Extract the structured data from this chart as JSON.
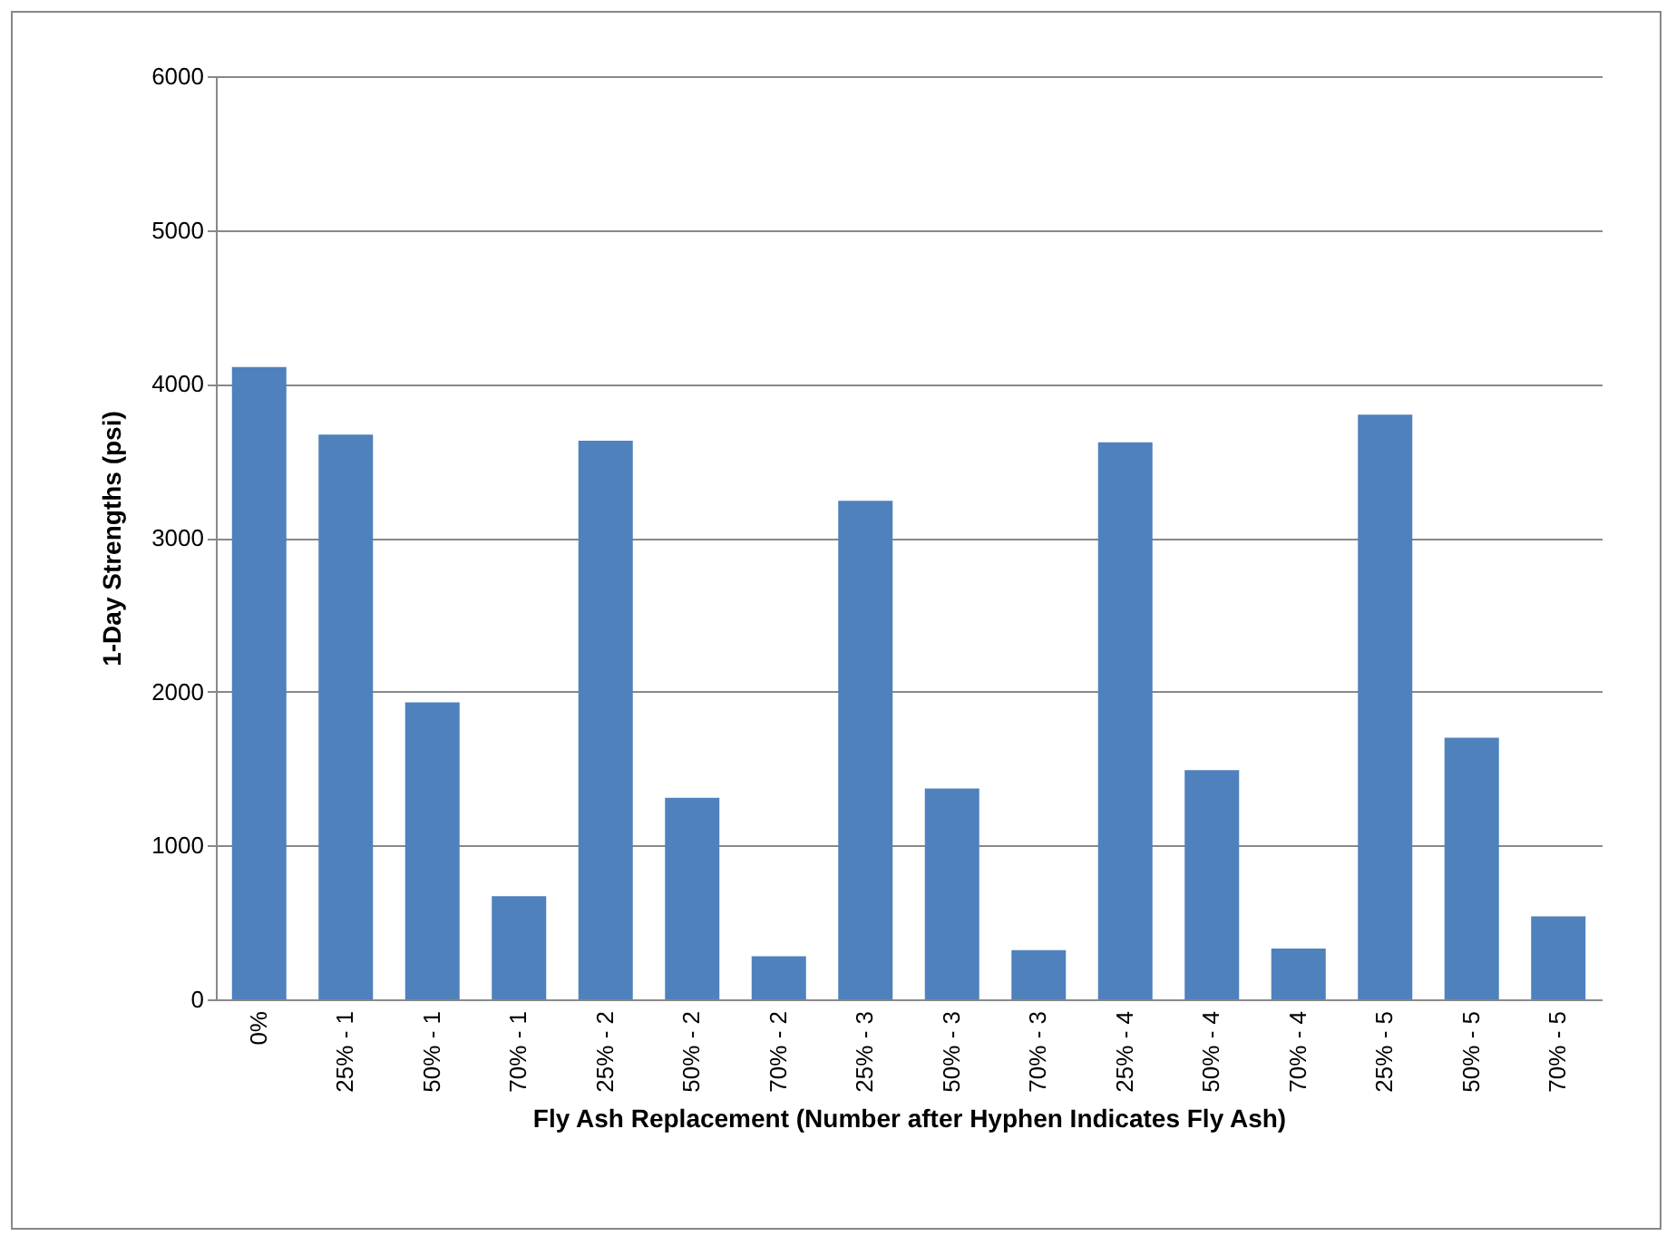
{
  "chart_data": {
    "type": "bar",
    "xlabel": "Fly Ash Replacement (Number after Hyphen Indicates Fly Ash)",
    "ylabel": "1-Day Strengths (psi)",
    "categories": [
      "0%",
      "25% - 1",
      "50% - 1",
      "70% - 1",
      "25% - 2",
      "50% - 2",
      "70% - 2",
      "25% - 3",
      "50% - 3",
      "70% - 3",
      "25% - 4",
      "50% - 4",
      "70% - 4",
      "25% - 5",
      "50% - 5",
      "70% - 5"
    ],
    "values": [
      4110,
      3670,
      1930,
      670,
      3630,
      1310,
      280,
      3240,
      1370,
      320,
      3620,
      1490,
      330,
      3800,
      1700,
      540
    ],
    "color": "#4f81bd",
    "ylim": [
      0,
      6000
    ],
    "yticks": [
      0,
      1000,
      2000,
      3000,
      4000,
      5000,
      6000
    ],
    "grid": "y"
  }
}
